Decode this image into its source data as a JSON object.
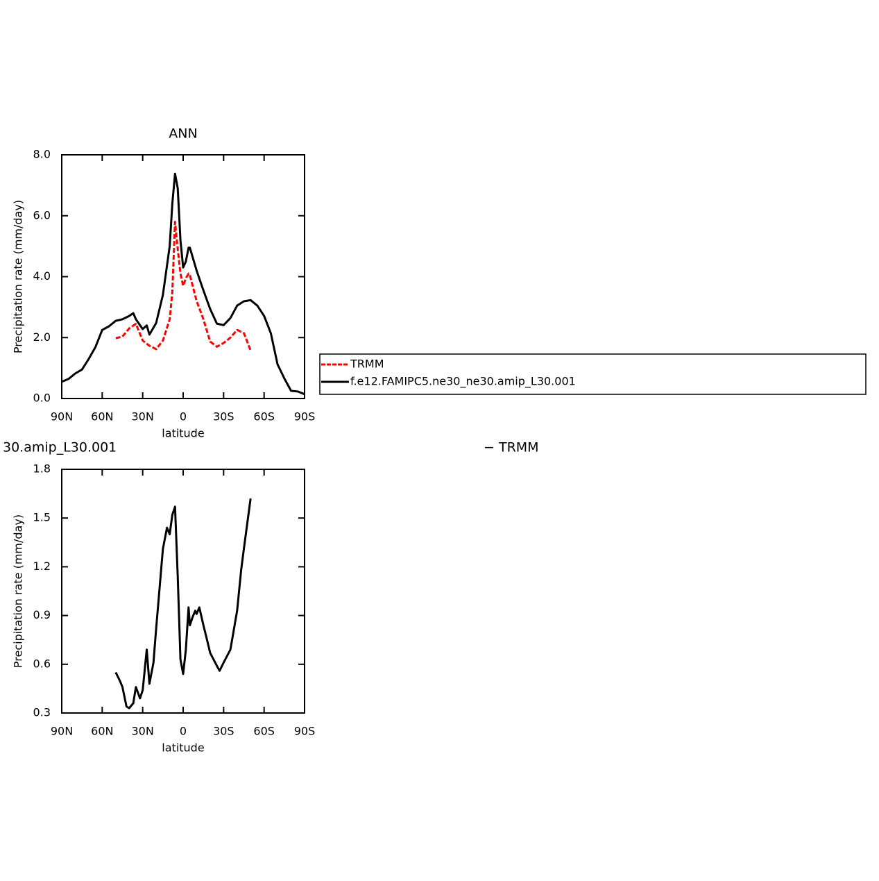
{
  "chart_data": [
    {
      "type": "line",
      "title": "ANN",
      "x_label": "latitude",
      "y_label": "Precipitation rate (mm/day)",
      "xlim": [
        90,
        -90
      ],
      "xticks": [
        {
          "value": 90,
          "label": "90N"
        },
        {
          "value": 60,
          "label": "60N"
        },
        {
          "value": 30,
          "label": "30N"
        },
        0,
        {
          "value": -30,
          "label": "30S"
        },
        {
          "value": -60,
          "label": "60S"
        },
        {
          "value": -90,
          "label": "90S"
        }
      ],
      "ylim": [
        0,
        8
      ],
      "yticks": [
        {
          "value": 0,
          "label": "0.0"
        },
        {
          "value": 2,
          "label": "2.0"
        },
        {
          "value": 4,
          "label": "4.0"
        },
        {
          "value": 6,
          "label": "6.0"
        },
        {
          "value": 8,
          "label": "8.0"
        }
      ],
      "legend": "right",
      "series": [
        {
          "name": "TRMM",
          "color": "#ff0000",
          "dashed": true,
          "x": [
            50,
            45,
            40,
            35,
            30,
            25,
            20,
            15,
            10,
            8,
            6,
            4,
            2,
            0,
            -2,
            -4,
            -5,
            -10,
            -15,
            -20,
            -25,
            -30,
            -35,
            -40,
            -45,
            -50
          ],
          "values": [
            1.98,
            2.03,
            2.3,
            2.45,
            1.9,
            1.73,
            1.62,
            1.9,
            2.6,
            3.5,
            5.8,
            4.9,
            4.1,
            3.7,
            3.95,
            4.1,
            4.05,
            3.2,
            2.6,
            1.87,
            1.7,
            1.82,
            2.0,
            2.25,
            2.15,
            1.58
          ]
        },
        {
          "name": "f.e12.FAMIPC5.ne30_ne30.amip_L30.001",
          "color": "#000000",
          "dashed": false,
          "x": [
            90,
            85,
            80,
            75,
            70,
            65,
            60,
            55,
            50,
            45,
            40,
            37,
            35,
            30,
            27,
            25,
            20,
            15,
            10,
            8,
            6,
            4,
            2,
            0,
            -2,
            -4,
            -5,
            -10,
            -15,
            -20,
            -25,
            -30,
            -35,
            -40,
            -45,
            -50,
            -55,
            -60,
            -65,
            -70,
            -75,
            -80,
            -85,
            -90
          ],
          "values": [
            0.55,
            0.64,
            0.82,
            0.95,
            1.3,
            1.69,
            2.25,
            2.37,
            2.55,
            2.6,
            2.71,
            2.8,
            2.6,
            2.28,
            2.4,
            2.1,
            2.48,
            3.4,
            5.0,
            6.4,
            7.38,
            6.9,
            5.2,
            4.3,
            4.5,
            4.95,
            4.95,
            4.2,
            3.55,
            2.94,
            2.46,
            2.41,
            2.64,
            3.05,
            3.19,
            3.23,
            3.05,
            2.71,
            2.14,
            1.12,
            0.66,
            0.25,
            0.23,
            0.14
          ]
        }
      ]
    },
    {
      "type": "line",
      "left_title": "30.amip_L30.001",
      "right_title": "− TRMM",
      "x_label": "latitude",
      "y_label": "Precipitation rate (mm/day)",
      "xlim": [
        90,
        -90
      ],
      "xticks": [
        {
          "value": 90,
          "label": "90N"
        },
        {
          "value": 60,
          "label": "60N"
        },
        {
          "value": 30,
          "label": "30N"
        },
        0,
        {
          "value": -30,
          "label": "30S"
        },
        {
          "value": -60,
          "label": "60S"
        },
        {
          "value": -90,
          "label": "90S"
        }
      ],
      "ylim": [
        0.3,
        1.8
      ],
      "yticks": [
        0.3,
        0.6,
        0.9,
        1.2,
        1.5,
        1.8
      ],
      "series": [
        {
          "color": "#000000",
          "dashed": false,
          "x": [
            50,
            47,
            45,
            42,
            40,
            37,
            35,
            32,
            30,
            27,
            25,
            22,
            20,
            15,
            12,
            10,
            8,
            6,
            4,
            2,
            0,
            -2,
            -4,
            -5,
            -7,
            -9,
            -10,
            -12,
            -15,
            -18,
            -20,
            -25,
            -27,
            -30,
            -35,
            -40,
            -43,
            -45,
            -50
          ],
          "values": [
            0.55,
            0.5,
            0.46,
            0.34,
            0.33,
            0.36,
            0.46,
            0.39,
            0.44,
            0.69,
            0.48,
            0.61,
            0.82,
            1.31,
            1.44,
            1.4,
            1.52,
            1.57,
            1.14,
            0.63,
            0.54,
            0.69,
            0.95,
            0.84,
            0.89,
            0.93,
            0.91,
            0.95,
            0.84,
            0.74,
            0.67,
            0.59,
            0.56,
            0.61,
            0.69,
            0.93,
            1.18,
            1.31,
            1.62
          ]
        }
      ]
    }
  ]
}
